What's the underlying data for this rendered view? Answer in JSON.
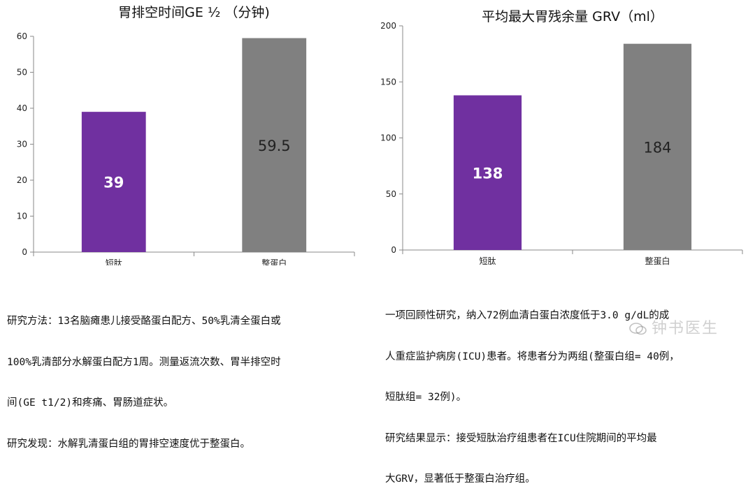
{
  "chart_data": [
    {
      "type": "bar",
      "title": "胃排空时间GE ½ （分钟)",
      "categories": [
        "短肽",
        "整蛋白"
      ],
      "values": [
        39,
        59.5
      ],
      "value_labels": [
        "39",
        "59.5"
      ],
      "bar_colors": [
        "#7030a0",
        "#808080"
      ],
      "value_label_colors": [
        "#ffffff",
        "#222222"
      ],
      "value_label_bold": [
        true,
        false
      ],
      "ylim": [
        0,
        60
      ],
      "yticks": [
        0,
        10,
        20,
        30,
        40,
        50,
        60
      ],
      "ytick_labels": [
        "0",
        "10",
        "20",
        "30",
        "40",
        "50",
        "60"
      ],
      "xlabel": "",
      "ylabel": "",
      "grid": false,
      "legend": "none"
    },
    {
      "type": "bar",
      "title": "平均最大胃残余量 GRV（ml）",
      "categories": [
        "短肽",
        "整蛋白"
      ],
      "values": [
        138,
        184
      ],
      "value_labels": [
        "138",
        "184"
      ],
      "bar_colors": [
        "#7030a0",
        "#808080"
      ],
      "value_label_colors": [
        "#ffffff",
        "#222222"
      ],
      "value_label_bold": [
        true,
        false
      ],
      "ylim": [
        0,
        200
      ],
      "yticks": [
        0,
        50,
        100,
        150,
        200
      ],
      "ytick_labels": [
        "0",
        "50",
        "100",
        "150",
        "200"
      ],
      "xlabel": "",
      "ylabel": "",
      "grid": false,
      "legend": "none"
    }
  ],
  "captions": {
    "left": [
      "研究方法：13名脑瘫患儿接受酪蛋白配方、50%乳清全蛋白或",
      "100%乳清部分水解蛋白配方1周。测量返流次数、胃半排空时",
      "间(GE t1/2)和疼痛、胃肠道症状。",
      "研究发现：水解乳清蛋白组的胃排空速度优于整蛋白。"
    ],
    "right": [
      "一项回顾性研究，纳入72例血清白蛋白浓度低于3.0 g/dL的成",
      "人重症监护病房(ICU)患者。将患者分为两组(整蛋白组= 40例，",
      "短肽组= 32例)。",
      "研究结果显示：接受短肽治疗组患者在ICU住院期间的平均最",
      "大GRV，显著低于整蛋白治疗组。"
    ]
  },
  "watermark": {
    "text": "钟书医生",
    "icon": "wechat-icon"
  }
}
